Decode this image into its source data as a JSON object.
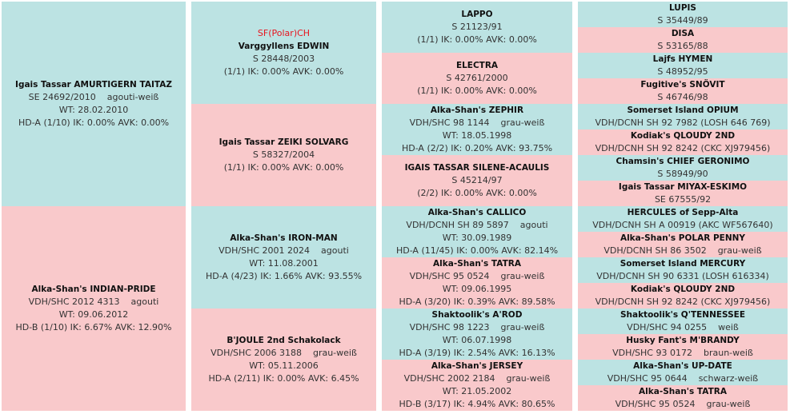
{
  "colors": {
    "male": "#bce3e3",
    "female": "#f9c9cb",
    "title": "#e8141e"
  },
  "columns": [
    [
      {
        "sex": "m",
        "name": "Igais Tassar AMURTIGERN TAITAZ",
        "reg": "SE 24692/2010",
        "color": "agouti-weiß",
        "wt": "WT: 28.02.2010",
        "stats": "HD-A (1/10) IK: 0.00%  AVK: 0.00%"
      },
      {
        "sex": "f",
        "name": "Alka-Shan's INDIAN-PRIDE",
        "reg": "VDH/SHC 2012 4313",
        "color": "agouti",
        "wt": "WT: 09.06.2012",
        "stats": "HD-B (1/10) IK: 6.67%  AVK: 12.90%"
      }
    ],
    [
      {
        "sex": "m",
        "title": "SF(Polar)CH",
        "name": "Varggyllens EDWIN",
        "reg": "S 28448/2003",
        "stats": "(1/1) IK: 0.00%  AVK: 0.00%"
      },
      {
        "sex": "f",
        "name": "Igais Tassar ZEIKI SOLVARG",
        "reg": "S 58327/2004",
        "stats": "(1/1) IK: 0.00%  AVK: 0.00%"
      },
      {
        "sex": "m",
        "name": "Alka-Shan's IRON-MAN",
        "reg": "VDH/SHC 2001 2024",
        "color": "agouti",
        "wt": "WT: 11.08.2001",
        "stats": "HD-A (4/23) IK: 1.66%  AVK: 93.55%"
      },
      {
        "sex": "f",
        "name": "B'JOULE 2nd Schakolack",
        "reg": "VDH/SHC 2006 3188",
        "color": "grau-weiß",
        "wt": "WT: 05.11.2006",
        "stats": "HD-A (2/11) IK: 0.00%  AVK: 6.45%"
      }
    ],
    [
      {
        "sex": "m",
        "name": "LAPPO",
        "reg": "S 21123/91",
        "stats": "(1/1) IK: 0.00%  AVK: 0.00%"
      },
      {
        "sex": "f",
        "name": "ELECTRA",
        "reg": "S 42761/2000",
        "stats": "(1/1) IK: 0.00%  AVK: 0.00%"
      },
      {
        "sex": "m",
        "name": "Alka-Shan's ZEPHIR",
        "reg": "VDH/SHC 98 1144",
        "color": "grau-weiß",
        "wt": "WT: 18.05.1998",
        "stats": "HD-A (2/2) IK: 0.20%  AVK: 93.75%"
      },
      {
        "sex": "f",
        "name": "IGAIS TASSAR SILENE-ACAULIS",
        "reg": "S 45214/97",
        "stats": "(2/2) IK: 0.00%  AVK: 0.00%"
      },
      {
        "sex": "m",
        "name": "Alka-Shan's CALLICO",
        "reg": "VDH/DCNH SH 89 5897",
        "color": "agouti",
        "wt": "WT: 30.09.1989",
        "stats": "HD-A (11/45) IK: 0.00%  AVK: 82.14%"
      },
      {
        "sex": "f",
        "name": "Alka-Shan's TATRA",
        "reg": "VDH/SHC 95 0524",
        "color": "grau-weiß",
        "wt": "WT: 09.06.1995",
        "stats": "HD-A (3/20) IK: 0.39%  AVK: 89.58%"
      },
      {
        "sex": "m",
        "name": "Shaktoolik's A'ROD",
        "reg": "VDH/SHC 98 1223",
        "color": "grau-weiß",
        "wt": "WT: 06.07.1998",
        "stats": "HD-A (3/19) IK: 2.54%  AVK: 16.13%"
      },
      {
        "sex": "f",
        "name": "Alka-Shan's JERSEY",
        "reg": "VDH/SHC 2002 2184",
        "color": "grau-weiß",
        "wt": "WT: 21.05.2002",
        "stats": "HD-B (3/17) IK: 4.94%  AVK: 80.65%"
      }
    ],
    [
      {
        "sex": "m",
        "name": "LUPIS",
        "reg": "S 35449/89"
      },
      {
        "sex": "f",
        "name": "DISA",
        "reg": "S 53165/88"
      },
      {
        "sex": "m",
        "name": "Lajfs HYMEN",
        "reg": "S 48952/95"
      },
      {
        "sex": "f",
        "name": "Fugitive's SNÖVIT",
        "reg": "S 46746/98"
      },
      {
        "sex": "m",
        "name": "Somerset Island OPIUM",
        "reg": "VDH/DCNH SH 92 7982 (LOSH 646 769)"
      },
      {
        "sex": "f",
        "name": "Kodiak's QLOUDY 2ND",
        "reg": "VDH/DCNH SH 92 8242 (CKC XJ979456)"
      },
      {
        "sex": "m",
        "name": "Chamsin's CHIEF GERONIMO",
        "reg": "S 58949/90"
      },
      {
        "sex": "f",
        "name": "Igais Tassar MIYAX-ESKIMO",
        "reg": "SE 67555/92"
      },
      {
        "sex": "m",
        "name": "HERCULES of Sepp-Alta",
        "reg": "VDH/DCNH SH A 00919 (AKC WF567640)"
      },
      {
        "sex": "f",
        "name": "Alka-Shan's POLAR PENNY",
        "reg": "VDH/DCNH SH 86 3502",
        "color": "grau-weiß"
      },
      {
        "sex": "m",
        "name": "Somerset Island MERCURY",
        "reg": "VDH/DCNH SH 90 6331 (LOSH 616334)"
      },
      {
        "sex": "f",
        "name": "Kodiak's QLOUDY 2ND",
        "reg": "VDH/DCNH SH 92 8242 (CKC XJ979456)"
      },
      {
        "sex": "m",
        "name": "Shaktoolik's Q'TENNESSEE",
        "reg": "VDH/SHC 94 0255",
        "color": "weiß"
      },
      {
        "sex": "f",
        "name": "Husky Fant's M'BRANDY",
        "reg": "VDH/SHC 93 0172",
        "color": "braun-weiß"
      },
      {
        "sex": "m",
        "name": "Alka-Shan's UP-DATE",
        "reg": "VDH/SHC 95 0644",
        "color": "schwarz-weiß"
      },
      {
        "sex": "f",
        "name": "Alka-Shan's TATRA",
        "reg": "VDH/SHC 95 0524",
        "color": "grau-weiß"
      }
    ]
  ]
}
